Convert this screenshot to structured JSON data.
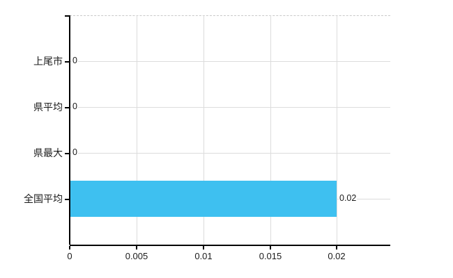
{
  "chart_data": {
    "type": "bar",
    "orientation": "horizontal",
    "title": "",
    "xlabel": "",
    "ylabel": "",
    "categories": [
      "上尾市",
      "県平均",
      "県最大",
      "全国平均"
    ],
    "values": [
      0,
      0,
      0,
      0.02
    ],
    "value_labels": [
      "0",
      "0",
      "0",
      "0.02"
    ],
    "x_ticks": [
      0,
      0.005,
      0.01,
      0.015,
      0.02
    ],
    "x_tick_labels": [
      "0",
      "0.005",
      "0.01",
      "0.015",
      "0.02"
    ],
    "xlim": [
      0,
      0.024
    ],
    "grid": true,
    "legend": false,
    "colors": {
      "bar": "#3EC0F0",
      "grid": "#DCDCDC",
      "top_border": "#C8C8C8",
      "axis": "#000000",
      "text": "#1A1A1A"
    }
  }
}
